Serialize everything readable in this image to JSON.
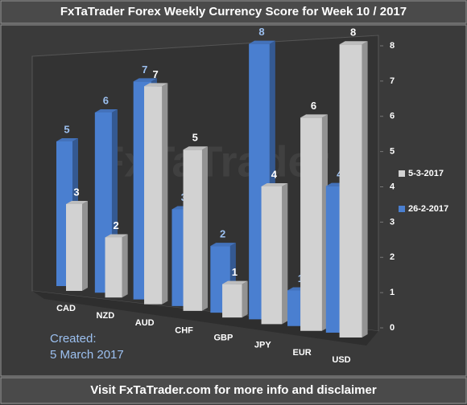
{
  "chart_data": {
    "type": "bar3d",
    "title": "FxTaTrader Forex Weekly Currency Score for Week 10 / 2017",
    "watermark": "FxTaTrader",
    "created_label": "Created:",
    "created_date": "5 March 2017",
    "footer": "Visit FxTaTrader.com for more info and disclaimer",
    "categories": [
      "CAD",
      "NZD",
      "AUD",
      "CHF",
      "GBP",
      "JPY",
      "EUR",
      "USD"
    ],
    "series": [
      {
        "name": "26-2-2017",
        "color": "#4a7fd0",
        "label_color": "#9cc0f0",
        "values": [
          5,
          6,
          7,
          3,
          2,
          8,
          1,
          4
        ]
      },
      {
        "name": "5-3-2017",
        "color": "#d2d2d2",
        "label_color": "#ffffff",
        "values": [
          3,
          2,
          7,
          5,
          1,
          4,
          6,
          8
        ]
      }
    ],
    "ylim": [
      0,
      8
    ],
    "yticks": [
      0,
      1,
      2,
      3,
      4,
      5,
      6,
      7,
      8
    ],
    "grid": false,
    "legend": "right"
  }
}
